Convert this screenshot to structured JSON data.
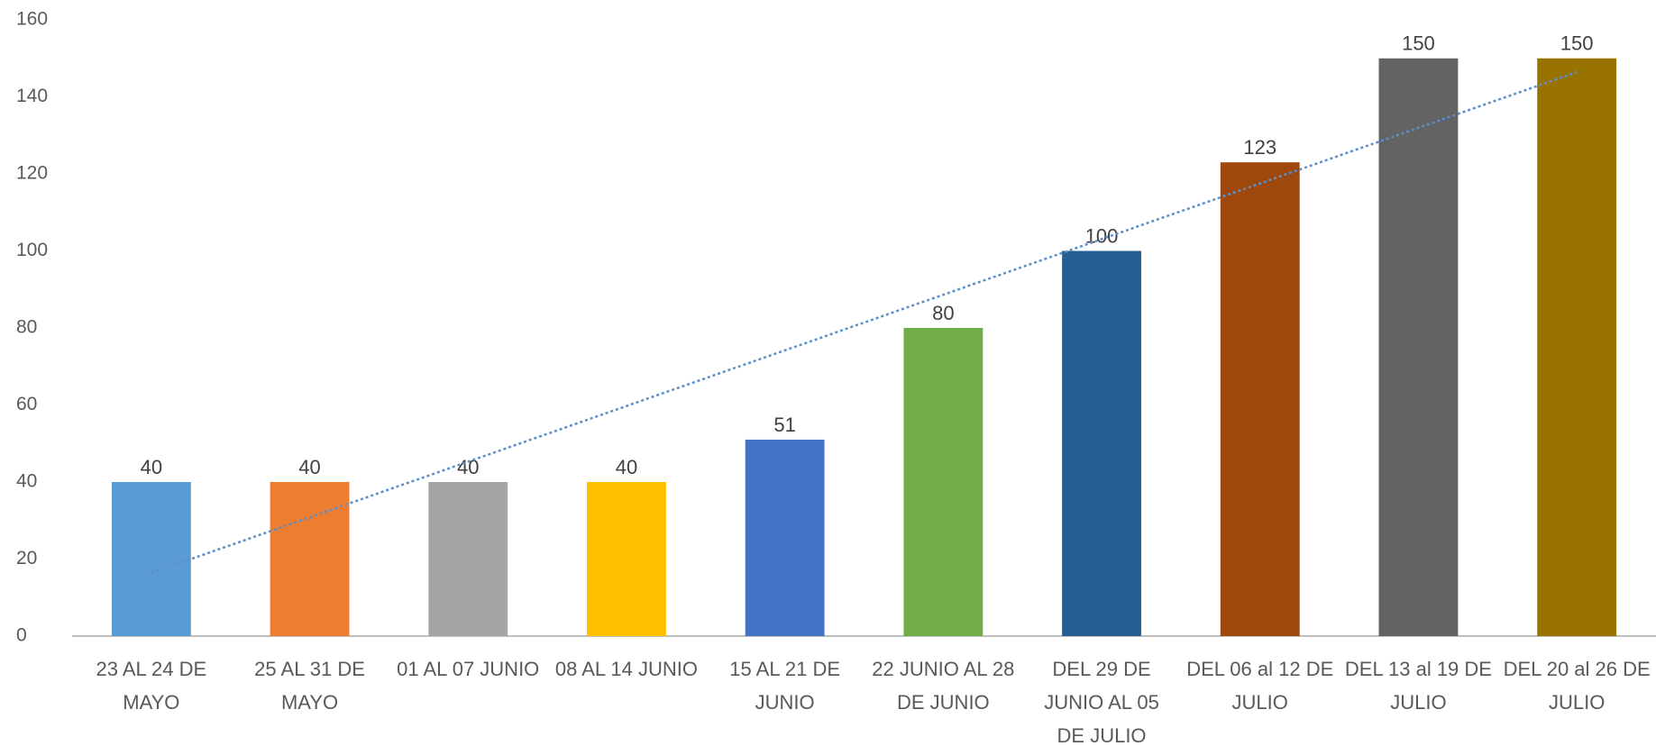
{
  "chart_data": {
    "type": "bar",
    "categories": [
      "23 AL 24 DE MAYO",
      "25 AL 31 DE MAYO",
      "01 AL 07 JUNIO",
      "08 AL 14 JUNIO",
      "15 AL 21 DE JUNIO",
      "22 JUNIO AL 28 DE JUNIO",
      "DEL 29 DE JUNIO AL 05 DE JULIO",
      "DEL 06 al 12 DE JULIO",
      "DEL 13 al 19 DE JULIO",
      "DEL 20 al 26 DE JULIO"
    ],
    "values": [
      40,
      40,
      40,
      40,
      51,
      80,
      100,
      123,
      150,
      150
    ],
    "colors": [
      "#5b9bd5",
      "#ed7d31",
      "#a5a5a5",
      "#ffc000",
      "#4472c4",
      "#70ad47",
      "#255e91",
      "#9e480e",
      "#636363",
      "#997300"
    ],
    "ylim": [
      0,
      160
    ],
    "yticks": [
      0,
      20,
      40,
      60,
      80,
      100,
      120,
      140,
      160
    ],
    "grid": false,
    "data_labels": true,
    "trendline": "linear",
    "trendline_color": "#5b8fc9"
  }
}
